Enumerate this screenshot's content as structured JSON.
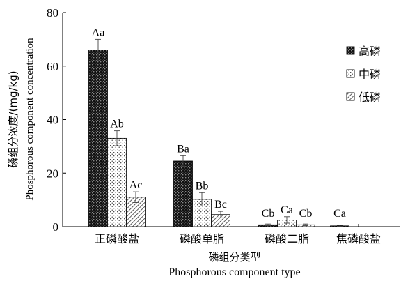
{
  "chart_data": {
    "type": "bar",
    "categories": [
      "正磷酸盐",
      "磷酸单脂",
      "磷酸二脂",
      "焦磷酸盐"
    ],
    "series": [
      {
        "name": "高磷",
        "values": [
          66,
          24.5,
          0.7,
          0.3
        ],
        "errors": [
          4,
          2,
          0.3,
          0.2
        ],
        "labels": [
          "Aa",
          "Ba",
          "Cb",
          "Ca"
        ],
        "pattern": "dark-checker"
      },
      {
        "name": "中磷",
        "values": [
          33,
          10.2,
          2.5,
          0
        ],
        "errors": [
          2.8,
          2.5,
          1.2,
          0
        ],
        "labels": [
          "Ab",
          "Bb",
          "Ca",
          ""
        ],
        "pattern": "light-dots"
      },
      {
        "name": "低磷",
        "values": [
          11,
          4.5,
          0.7,
          0
        ],
        "errors": [
          2,
          1.2,
          0.3,
          0
        ],
        "labels": [
          "Ac",
          "Bc",
          "Cb",
          ""
        ],
        "pattern": "diagonal-hatch"
      }
    ],
    "yticks": [
      0,
      20,
      40,
      60,
      80
    ],
    "ylim": [
      0,
      80
    ],
    "ylabel": "磷组分浓度/(mg/kg)",
    "ylabel_en": "Phosphorous component concentration",
    "xlabel": "磷组分类型",
    "xlabel_en": "Phosphorous component type",
    "legend_position": "top-right",
    "grid": false
  }
}
